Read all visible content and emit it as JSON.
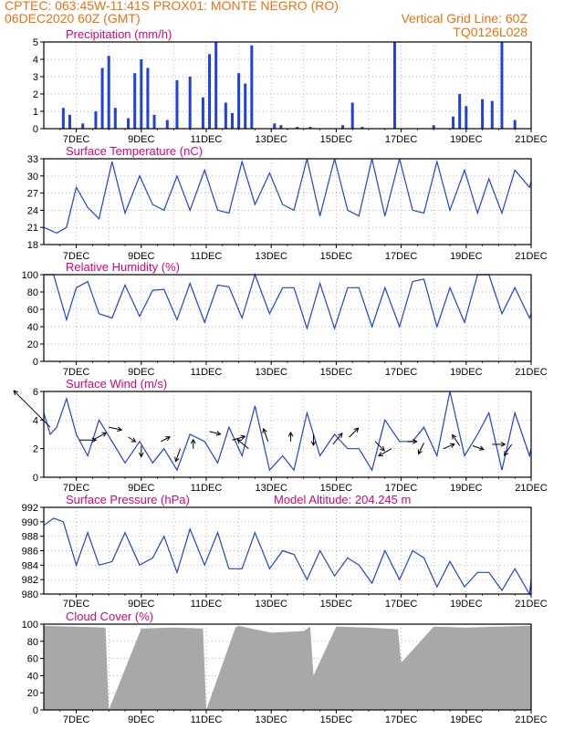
{
  "header": {
    "line1_left": "CPTEC:   063:45W-11:41S   PROX01: MONTE NEGRO (RO)",
    "line2_left": "06DEC2020 60Z (GMT)",
    "line2_right": "Vertical Grid Line: 60Z",
    "line3_right": "TQ0126L028",
    "model_altitude": "Model Altitude: 204.245 m"
  },
  "colors": {
    "header": "#f07010",
    "title": "#e0007a",
    "line": "#2040e0",
    "cloud": "#a8a8a8",
    "arrow": "#000000"
  },
  "x_ticks": [
    "7DEC",
    "9DEC",
    "11DEC",
    "13DEC",
    "15DEC",
    "17DEC",
    "19DEC",
    "21DEC"
  ],
  "chart_data": [
    {
      "type": "bar",
      "title": "Precipitation (mm/h)",
      "ylim": [
        0,
        5
      ],
      "yticks": [
        0,
        1,
        2,
        3,
        4,
        5
      ],
      "x": [
        6.6,
        6.8,
        7.2,
        7.6,
        7.8,
        8.0,
        8.2,
        8.6,
        8.8,
        9.0,
        9.2,
        9.4,
        9.8,
        10.1,
        10.5,
        10.9,
        11.1,
        11.3,
        11.6,
        11.8,
        12.0,
        12.2,
        12.4,
        13.1,
        13.3,
        13.8,
        14.2,
        15.2,
        15.5,
        15.8,
        16.8,
        18.0,
        18.6,
        18.8,
        19.0,
        19.5,
        19.8,
        20.1,
        20.5
      ],
      "values": [
        1.2,
        0.8,
        0.3,
        1.0,
        3.5,
        4.2,
        1.2,
        0.6,
        3.2,
        4.0,
        3.5,
        0.8,
        0.5,
        2.8,
        3.0,
        1.8,
        4.3,
        5.0,
        1.5,
        0.9,
        3.2,
        2.6,
        4.8,
        0.3,
        0.2,
        0.1,
        0.1,
        0.2,
        1.5,
        0.1,
        5.0,
        0.2,
        0.7,
        2.0,
        1.3,
        1.7,
        1.6,
        5.0,
        0.5
      ]
    },
    {
      "type": "line",
      "title": "Surface Temperature (nC)",
      "ylim": [
        18,
        33
      ],
      "yticks": [
        18,
        21,
        24,
        27,
        30,
        33
      ],
      "x": [
        6.0,
        6.2,
        6.4,
        6.7,
        7.0,
        7.35,
        7.7,
        8.1,
        8.5,
        8.95,
        9.35,
        9.7,
        10.1,
        10.5,
        10.95,
        11.35,
        11.7,
        12.1,
        12.5,
        12.95,
        13.35,
        13.7,
        14.1,
        14.5,
        14.95,
        15.35,
        15.7,
        16.1,
        16.5,
        16.95,
        17.35,
        17.7,
        18.1,
        18.5,
        18.95,
        19.35,
        19.7,
        20.1,
        20.5,
        20.95,
        21.0
      ],
      "values": [
        21,
        20.5,
        20,
        21,
        28,
        24.5,
        22.5,
        32.5,
        23.5,
        30,
        25,
        24,
        30,
        24,
        31,
        24,
        23.5,
        32.5,
        25,
        30.5,
        25,
        24,
        33,
        23,
        33,
        24,
        23,
        33,
        23,
        33,
        24,
        23.5,
        32.5,
        24,
        31,
        23.5,
        29.5,
        23.5,
        31,
        28,
        29
      ]
    },
    {
      "type": "line",
      "title": "Relative Humidity (%)",
      "ylim": [
        0,
        100
      ],
      "yticks": [
        0,
        20,
        40,
        60,
        80,
        100
      ],
      "x": [
        6.0,
        6.3,
        6.7,
        7.0,
        7.35,
        7.7,
        8.1,
        8.5,
        8.95,
        9.35,
        9.7,
        10.1,
        10.5,
        10.95,
        11.35,
        11.7,
        12.1,
        12.5,
        12.95,
        13.35,
        13.7,
        14.1,
        14.5,
        14.95,
        15.35,
        15.7,
        16.1,
        16.5,
        16.95,
        17.35,
        17.7,
        18.1,
        18.5,
        18.95,
        19.35,
        19.7,
        20.1,
        20.5,
        20.95,
        21.0
      ],
      "values": [
        100,
        100,
        48,
        85,
        92,
        55,
        50,
        88,
        52,
        82,
        83,
        48,
        90,
        45,
        88,
        86,
        50,
        100,
        55,
        85,
        85,
        38,
        90,
        38,
        85,
        85,
        40,
        85,
        40,
        92,
        95,
        40,
        85,
        45,
        100,
        100,
        55,
        85,
        50,
        55
      ]
    },
    {
      "type": "line",
      "title": "Surface Wind (m/s)",
      "ylim": [
        0,
        6
      ],
      "yticks": [
        0,
        2,
        4,
        6
      ],
      "x": [
        6.0,
        6.2,
        6.4,
        6.7,
        7.0,
        7.35,
        7.7,
        8.1,
        8.5,
        8.95,
        9.35,
        9.7,
        10.1,
        10.5,
        10.95,
        11.35,
        11.7,
        12.1,
        12.5,
        12.95,
        13.35,
        13.7,
        14.1,
        14.5,
        14.95,
        15.35,
        15.7,
        16.1,
        16.5,
        16.95,
        17.35,
        17.7,
        18.1,
        18.5,
        18.95,
        19.35,
        19.7,
        20.1,
        20.5,
        20.95,
        21.0
      ],
      "values": [
        4.5,
        3.0,
        3.5,
        5.5,
        3.0,
        1.5,
        4.0,
        2.5,
        1.0,
        2.5,
        1.0,
        2.0,
        0.5,
        3.0,
        2.5,
        1.0,
        3.5,
        1.5,
        5.0,
        0.5,
        1.5,
        0.5,
        4.5,
        1.5,
        3.0,
        2.0,
        2.0,
        0.5,
        4.0,
        2.5,
        2.5,
        3.5,
        1.5,
        6.0,
        1.5,
        3.0,
        4.5,
        0.5,
        4.5,
        1.5,
        2.0
      ]
    },
    {
      "type": "line",
      "title": "Surface Pressure (hPa)",
      "ylim": [
        980,
        992
      ],
      "yticks": [
        980,
        982,
        984,
        986,
        988,
        990,
        992
      ],
      "x": [
        6.0,
        6.3,
        6.6,
        7.0,
        7.35,
        7.7,
        8.1,
        8.5,
        8.95,
        9.35,
        9.7,
        10.1,
        10.5,
        10.95,
        11.35,
        11.7,
        12.1,
        12.5,
        12.95,
        13.35,
        13.7,
        14.1,
        14.5,
        14.95,
        15.35,
        15.7,
        16.1,
        16.5,
        16.95,
        17.35,
        17.7,
        18.1,
        18.5,
        18.95,
        19.35,
        19.7,
        20.1,
        20.5,
        20.95,
        21.0
      ],
      "values": [
        989.5,
        990.5,
        990,
        984,
        988.5,
        984,
        984.5,
        988.5,
        984,
        985,
        988,
        983,
        989,
        984,
        988.5,
        983.5,
        983.5,
        988.5,
        983.5,
        986,
        985.5,
        982,
        986,
        982.5,
        985,
        984,
        981.5,
        986,
        982,
        986,
        985,
        981,
        984.5,
        981,
        983,
        983,
        980.5,
        983.5,
        980,
        982
      ]
    },
    {
      "type": "area",
      "title": "Cloud Cover (%)",
      "ylim": [
        0,
        100
      ],
      "yticks": [
        0,
        20,
        40,
        60,
        80,
        100
      ],
      "x": [
        6.0,
        7.0,
        7.9,
        8.0,
        9.0,
        10.0,
        10.9,
        11.0,
        11.9,
        12.0,
        13.0,
        14.0,
        14.2,
        14.3,
        15.0,
        16.0,
        16.9,
        17.0,
        18.0,
        19.0,
        20.0,
        21.0
      ],
      "values": [
        98,
        97,
        96,
        0,
        95,
        96,
        95,
        0,
        96,
        98,
        90,
        92,
        97,
        40,
        97,
        96,
        94,
        55,
        97,
        96,
        97,
        98
      ]
    }
  ]
}
